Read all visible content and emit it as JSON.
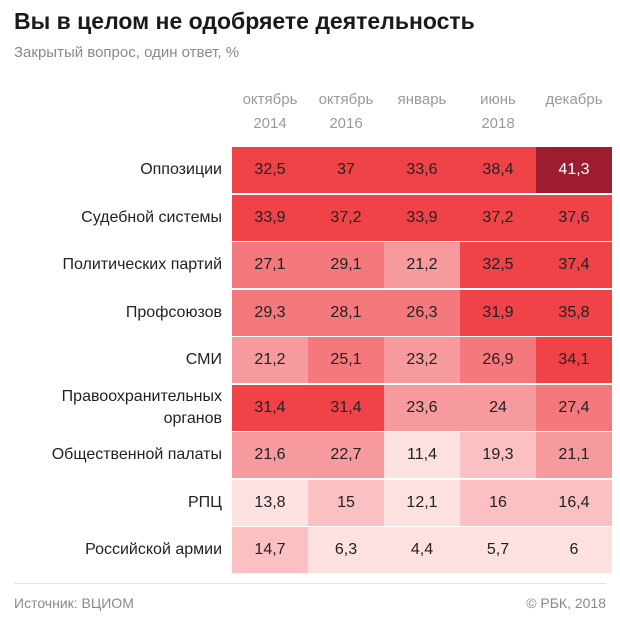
{
  "chart_data": {
    "type": "heatmap",
    "title": "Вы в целом не одобряете  деятельность",
    "subtitle": "Закрытый вопрос, один ответ, %",
    "columns": [
      {
        "line1": "октябрь",
        "line2": "2014"
      },
      {
        "line1": "октябрь",
        "line2": "2016"
      },
      {
        "line1": "январь",
        "line2": ""
      },
      {
        "line1": "июнь",
        "line2": "2018"
      },
      {
        "line1": "декабрь",
        "line2": ""
      }
    ],
    "rows": [
      {
        "label": "Оппозиции",
        "values": [
          "32,5",
          "37",
          "33,6",
          "38,4",
          "41,3"
        ]
      },
      {
        "label": "Судебной системы",
        "values": [
          "33,9",
          "37,2",
          "33,9",
          "37,2",
          "37,6"
        ]
      },
      {
        "label": "Политических партий",
        "values": [
          "27,1",
          "29,1",
          "21,2",
          "32,5",
          "37,4"
        ]
      },
      {
        "label": "Профсоюзов",
        "values": [
          "29,3",
          "28,1",
          "26,3",
          "31,9",
          "35,8"
        ]
      },
      {
        "label": "СМИ",
        "values": [
          "21,2",
          "25,1",
          "23,2",
          "26,9",
          "34,1"
        ]
      },
      {
        "label": "Правоохранительных органов",
        "values": [
          "31,4",
          "31,4",
          "23,6",
          "24",
          "27,4"
        ]
      },
      {
        "label": "Общественной палаты",
        "values": [
          "21,6",
          "22,7",
          "11,4",
          "19,3",
          "21,1"
        ]
      },
      {
        "label": "РПЦ",
        "values": [
          "13,8",
          "15",
          "12,1",
          "16",
          "16,4"
        ]
      },
      {
        "label": "Российской армии",
        "values": [
          "14,7",
          "6,3",
          "4,4",
          "5,7",
          "6"
        ]
      }
    ],
    "color_scale": {
      "colors": [
        "#fde0e0",
        "#fbc0c2",
        "#f79a9d",
        "#f4787c",
        "#ef4348",
        "#9e1c2f"
      ],
      "thresholds": [
        8,
        14,
        20,
        25,
        30,
        40
      ]
    }
  },
  "footer": {
    "source": "Источник: ВЦИОМ",
    "credit": "© РБК, 2018"
  }
}
